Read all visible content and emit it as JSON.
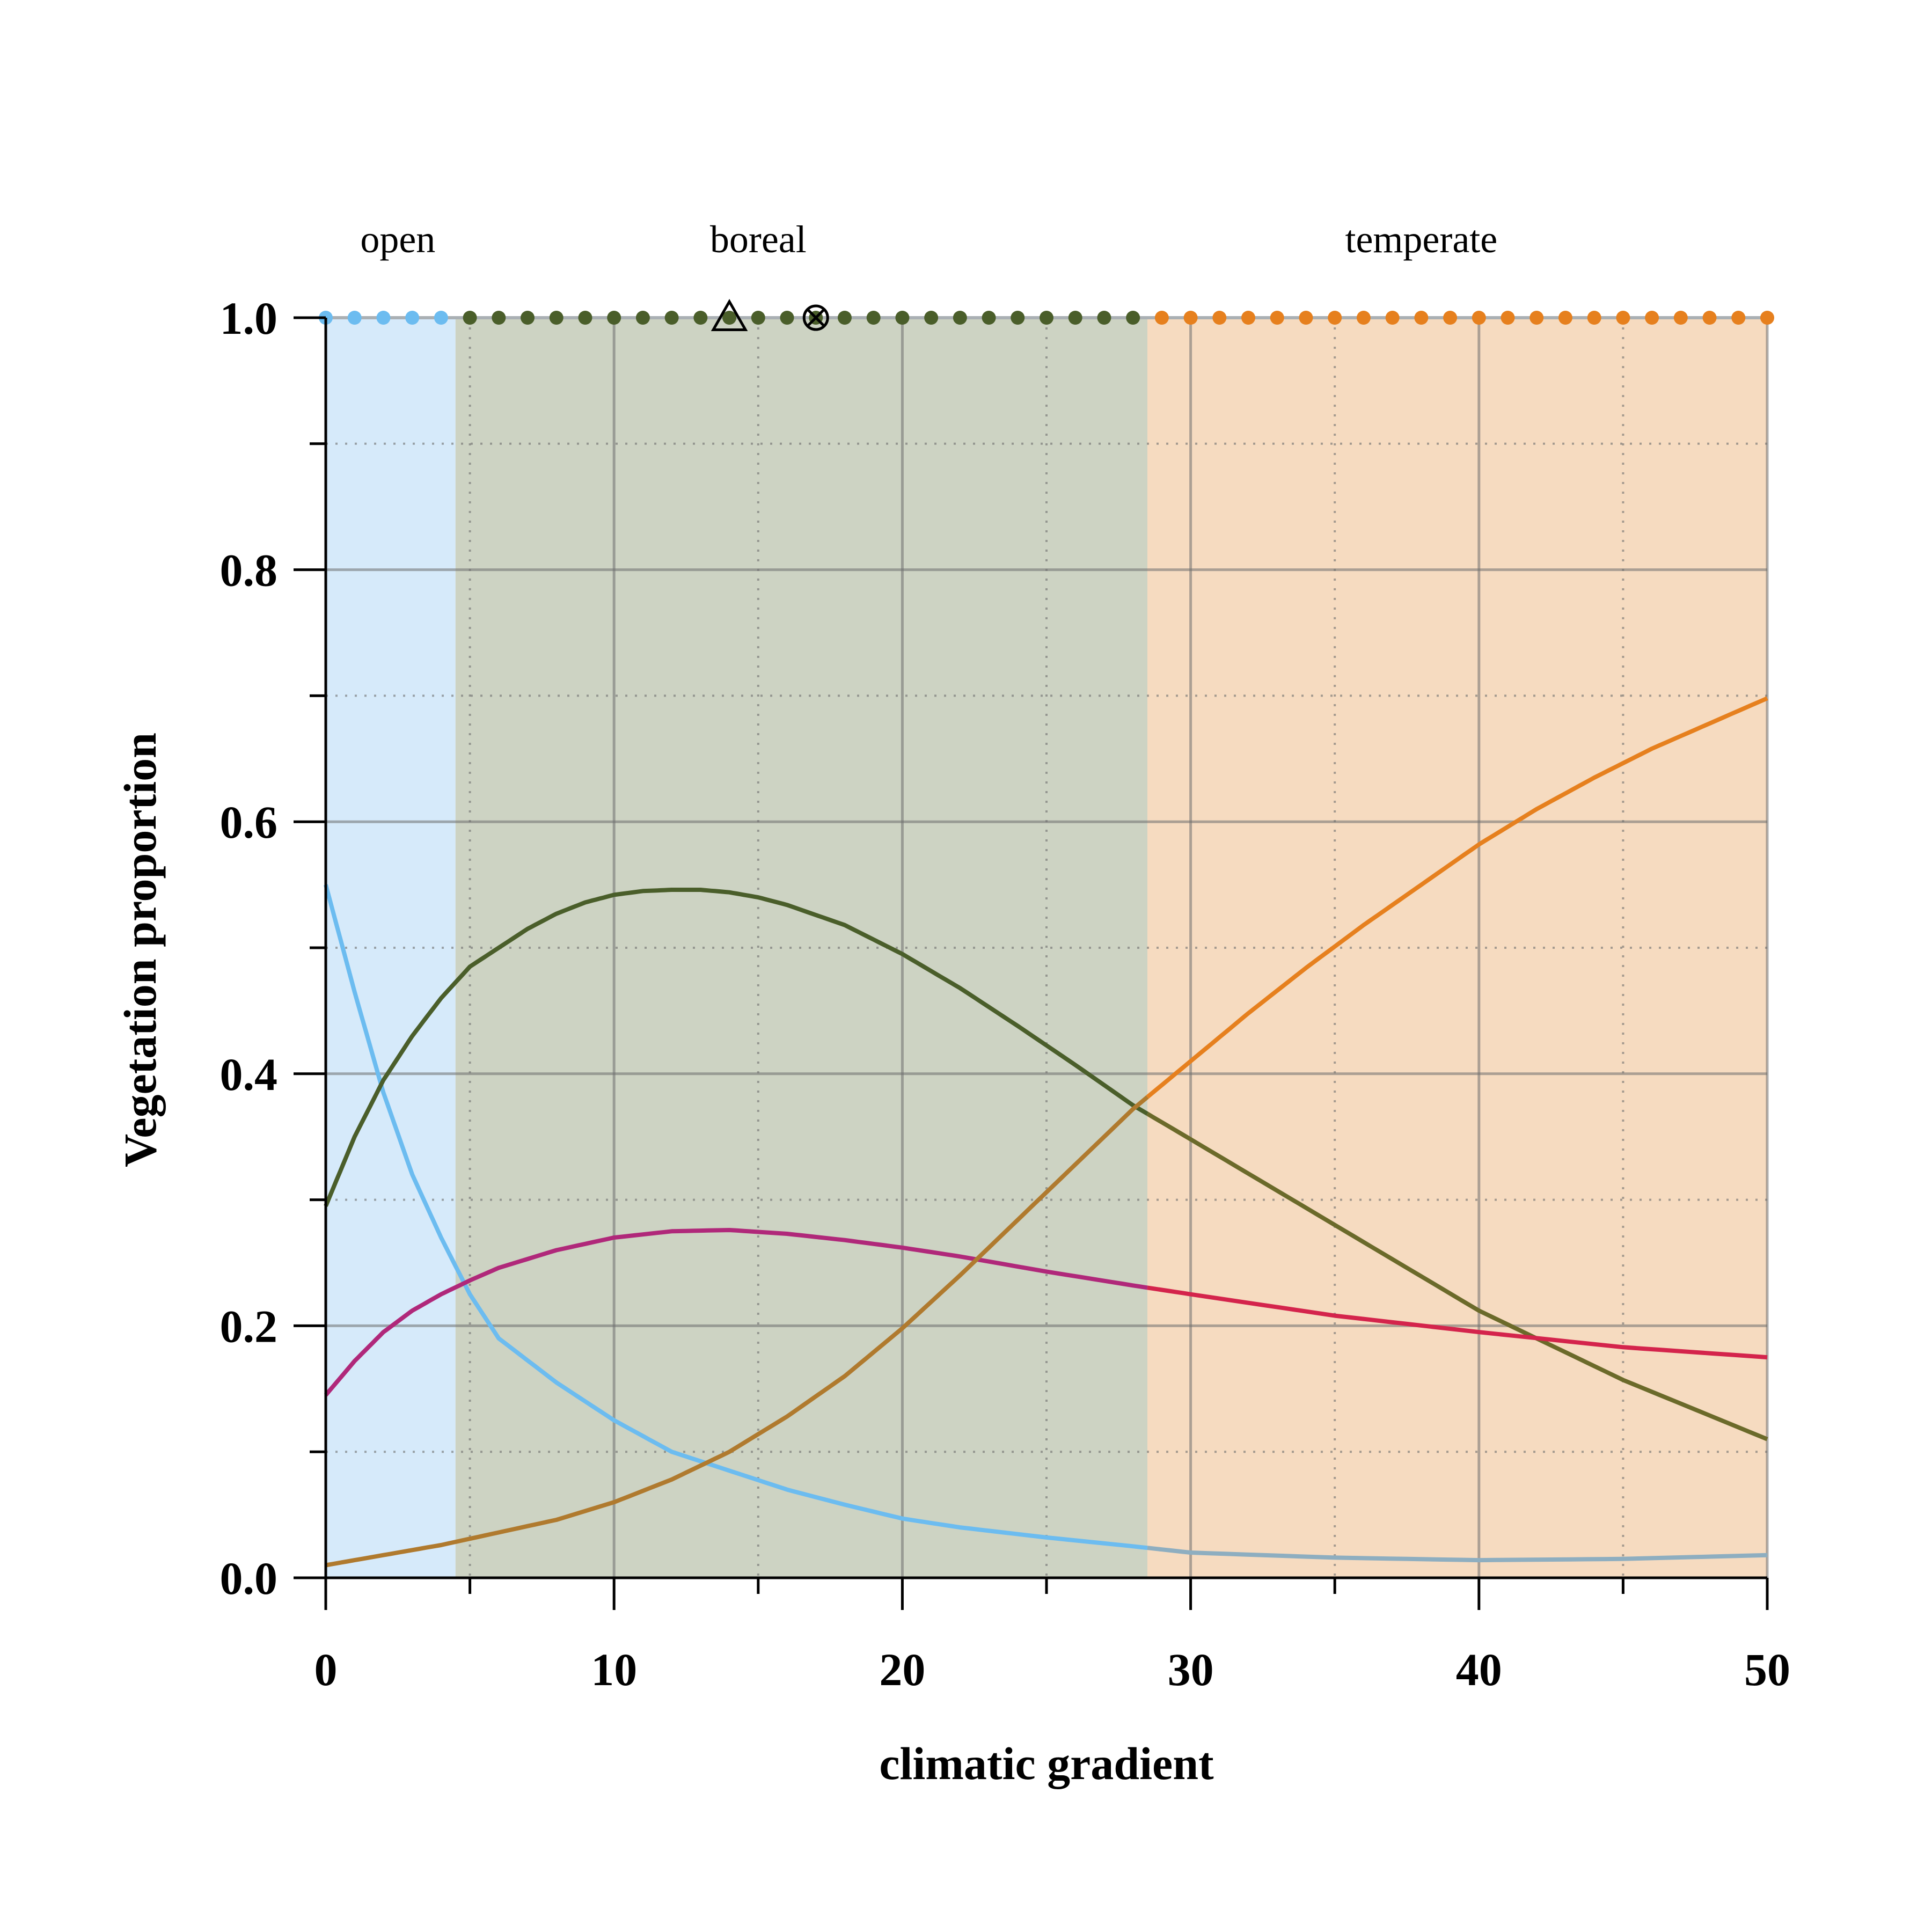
{
  "chart_data": {
    "type": "line",
    "xlabel": "climatic gradient",
    "ylabel": "Vegetation proportion",
    "xlim": [
      0,
      50
    ],
    "ylim": [
      0,
      1
    ],
    "x_ticks": [
      0,
      10,
      20,
      30,
      40,
      50
    ],
    "x_tick_labels": [
      "0",
      "10",
      "20",
      "30",
      "40",
      "50"
    ],
    "y_ticks": [
      0,
      0.2,
      0.4,
      0.6,
      0.8,
      1.0
    ],
    "y_tick_labels": [
      "0.0",
      "0.2",
      "0.4",
      "0.6",
      "0.8",
      "1.0"
    ],
    "grid": true,
    "zones": [
      {
        "label": "open",
        "from": 0,
        "to": 4.5,
        "color": "#d6eafa",
        "dot_color": "#6cbcf0"
      },
      {
        "label": "boreal",
        "from": 4.5,
        "to": 28.5,
        "color": "#cdd3c3",
        "dot_color": "#4a5e2a"
      },
      {
        "label": "temperate",
        "from": 28.5,
        "to": 50,
        "color": "#f6dbc0",
        "dot_color": "#e6801e"
      }
    ],
    "markers": [
      {
        "x": 14,
        "y": 1.0,
        "symbol": "triangle"
      },
      {
        "x": 17,
        "y": 1.0,
        "symbol": "circle-x"
      }
    ],
    "series": [
      {
        "color_in": "#6cbcf0",
        "color_out": "#8eaec0",
        "x": [
          0,
          1,
          2,
          3,
          4,
          5,
          6,
          8,
          10,
          12,
          14,
          16,
          18,
          20,
          22,
          25,
          28,
          30,
          35,
          40,
          45,
          50
        ],
        "values": [
          0.55,
          0.465,
          0.385,
          0.32,
          0.27,
          0.225,
          0.19,
          0.155,
          0.125,
          0.1,
          0.085,
          0.07,
          0.058,
          0.047,
          0.04,
          0.032,
          0.025,
          0.02,
          0.016,
          0.014,
          0.015,
          0.018
        ]
      },
      {
        "color_in": "#4a5e2a",
        "color_out": "#6b6a2a",
        "x": [
          0,
          1,
          2,
          3,
          4,
          5,
          6,
          7,
          8,
          9,
          10,
          11,
          12,
          13,
          14,
          15,
          16,
          18,
          20,
          22,
          24,
          26,
          28,
          30,
          35,
          40,
          45,
          50
        ],
        "values": [
          0.295,
          0.35,
          0.395,
          0.43,
          0.46,
          0.485,
          0.5,
          0.515,
          0.527,
          0.536,
          0.542,
          0.545,
          0.546,
          0.546,
          0.544,
          0.54,
          0.534,
          0.518,
          0.495,
          0.468,
          0.438,
          0.407,
          0.375,
          0.348,
          0.28,
          0.212,
          0.157,
          0.11
        ]
      },
      {
        "color_in": "#b0287a",
        "color_out": "#d4244c",
        "x": [
          0,
          1,
          2,
          3,
          4,
          5,
          6,
          8,
          10,
          12,
          14,
          16,
          18,
          20,
          22,
          25,
          28,
          30,
          35,
          40,
          45,
          50
        ],
        "values": [
          0.145,
          0.172,
          0.195,
          0.212,
          0.225,
          0.236,
          0.246,
          0.26,
          0.27,
          0.275,
          0.276,
          0.273,
          0.268,
          0.262,
          0.255,
          0.243,
          0.232,
          0.225,
          0.208,
          0.195,
          0.183,
          0.175
        ]
      },
      {
        "color_in": "#b07a2e",
        "color_out": "#e6801e",
        "x": [
          0,
          2,
          4,
          6,
          8,
          10,
          12,
          14,
          16,
          18,
          20,
          22,
          24,
          26,
          28,
          30,
          32,
          34,
          36,
          38,
          40,
          42,
          44,
          46,
          48,
          50
        ],
        "values": [
          0.01,
          0.018,
          0.026,
          0.036,
          0.046,
          0.06,
          0.078,
          0.1,
          0.128,
          0.16,
          0.198,
          0.24,
          0.284,
          0.328,
          0.372,
          0.41,
          0.448,
          0.484,
          0.518,
          0.55,
          0.582,
          0.61,
          0.635,
          0.658,
          0.678,
          0.698
        ]
      }
    ]
  }
}
